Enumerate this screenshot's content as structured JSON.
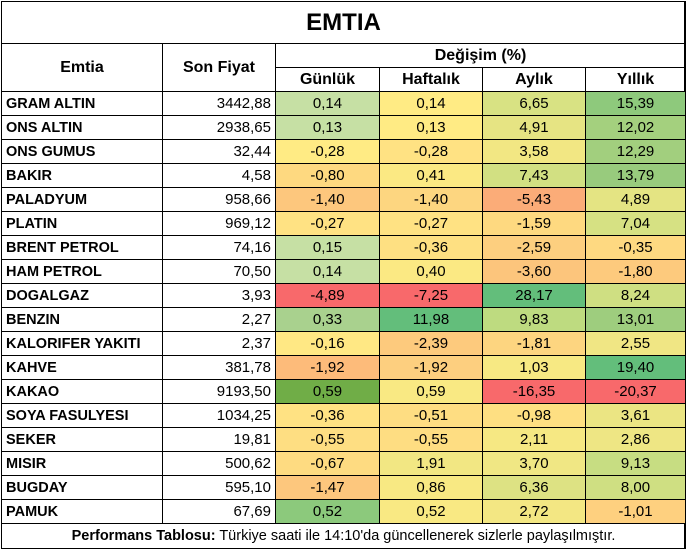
{
  "title": "EMTIA",
  "headers": {
    "name": "Emtia",
    "price": "Son Fiyat",
    "change_group": "Değişim (%)",
    "daily": "Günlük",
    "weekly": "Haftalık",
    "monthly": "Aylık",
    "yearly": "Yıllık"
  },
  "rows": [
    {
      "name": "GRAM ALTIN",
      "price": "3442,88",
      "daily": "0,14",
      "weekly": "0,14",
      "monthly": "6,65",
      "yearly": "15,39",
      "colors": [
        "#c6e0a4",
        "#ffeb84",
        "#d8e283",
        "#8ec97c"
      ]
    },
    {
      "name": "ONS ALTIN",
      "price": "2938,65",
      "daily": "0,13",
      "weekly": "0,13",
      "monthly": "4,91",
      "yearly": "12,02",
      "colors": [
        "#c6e0a4",
        "#ffeb84",
        "#e6e483",
        "#a4d07e"
      ]
    },
    {
      "name": "ONS GUMUS",
      "price": "32,44",
      "daily": "-0,28",
      "weekly": "-0,28",
      "monthly": "3,58",
      "yearly": "12,29",
      "colors": [
        "#ffeb84",
        "#ffe283",
        "#f2e783",
        "#a2cf7e"
      ]
    },
    {
      "name": "BAKIR",
      "price": "4,58",
      "daily": "-0,80",
      "weekly": "0,41",
      "monthly": "7,43",
      "yearly": "13,79",
      "colors": [
        "#fed980",
        "#fbe983",
        "#d2e082",
        "#98cb7d"
      ]
    },
    {
      "name": "PALADYUM",
      "price": "958,66",
      "daily": "-1,40",
      "weekly": "-1,40",
      "monthly": "-5,43",
      "yearly": "4,89",
      "colors": [
        "#fdc77d",
        "#fdd680",
        "#fbac78",
        "#e4e483"
      ]
    },
    {
      "name": "PLATIN",
      "price": "969,12",
      "daily": "-0,27",
      "weekly": "-0,27",
      "monthly": "-1,59",
      "yearly": "7,04",
      "colors": [
        "#ffe283",
        "#ffe283",
        "#fed980",
        "#d6e183"
      ]
    },
    {
      "name": "BRENT PETROL",
      "price": "74,16",
      "daily": "0,15",
      "weekly": "-0,36",
      "monthly": "-2,59",
      "yearly": "-0,35",
      "colors": [
        "#c6e0a4",
        "#fee082",
        "#fdcf7f",
        "#fed981"
      ]
    },
    {
      "name": "HAM PETROL",
      "price": "70,50",
      "daily": "0,14",
      "weekly": "0,40",
      "monthly": "-3,60",
      "yearly": "-1,80",
      "colors": [
        "#c6e0a4",
        "#fbe983",
        "#fcc57c",
        "#fdca7d"
      ]
    },
    {
      "name": "DOGALGAZ",
      "price": "3,93",
      "daily": "-4,89",
      "weekly": "-7,25",
      "monthly": "28,17",
      "yearly": "8,24",
      "colors": [
        "#f8696b",
        "#f8696b",
        "#63be7b",
        "#cfdf82"
      ]
    },
    {
      "name": "BENZIN",
      "price": "2,27",
      "daily": "0,33",
      "weekly": "11,98",
      "monthly": "9,83",
      "yearly": "13,01",
      "colors": [
        "#a9d18e",
        "#63be7b",
        "#bedb80",
        "#9ecd7e"
      ]
    },
    {
      "name": "KALORIFER YAKITI",
      "price": "2,37",
      "daily": "-0,16",
      "weekly": "-2,39",
      "monthly": "-1,81",
      "yearly": "2,55",
      "colors": [
        "#ffe884",
        "#fdca7d",
        "#fdd580",
        "#f0e684"
      ]
    },
    {
      "name": "KAHVE",
      "price": "381,78",
      "daily": "-1,92",
      "weekly": "-1,92",
      "monthly": "1,03",
      "yearly": "19,40",
      "colors": [
        "#fdbb7a",
        "#fdcf7f",
        "#f7e983",
        "#63be7b"
      ]
    },
    {
      "name": "KAKAO",
      "price": "9193,50",
      "daily": "0,59",
      "weekly": "0,59",
      "monthly": "-16,35",
      "yearly": "-20,37",
      "colors": [
        "#70ad47",
        "#f9e983",
        "#f8696b",
        "#f8696b"
      ]
    },
    {
      "name": "SOYA FASULYESI",
      "price": "1034,25",
      "daily": "-0,36",
      "weekly": "-0,51",
      "monthly": "-0,98",
      "yearly": "3,61",
      "colors": [
        "#ffe283",
        "#fedd82",
        "#fedf82",
        "#ebe583"
      ]
    },
    {
      "name": "SEKER",
      "price": "19,81",
      "daily": "-0,55",
      "weekly": "-0,55",
      "monthly": "2,11",
      "yearly": "2,86",
      "colors": [
        "#fede82",
        "#fedd82",
        "#f6e883",
        "#eee684"
      ]
    },
    {
      "name": "MISIR",
      "price": "500,62",
      "daily": "-0,67",
      "weekly": "1,91",
      "monthly": "3,70",
      "yearly": "9,13",
      "colors": [
        "#fedb81",
        "#f2e783",
        "#f0e784",
        "#c7dd82"
      ]
    },
    {
      "name": "BUGDAY",
      "price": "595,10",
      "daily": "-1,47",
      "weekly": "0,86",
      "monthly": "6,36",
      "yearly": "8,00",
      "colors": [
        "#fdc77d",
        "#f8e983",
        "#dde283",
        "#cfdf82"
      ]
    },
    {
      "name": "PAMUK",
      "price": "67,69",
      "daily": "0,52",
      "weekly": "0,52",
      "monthly": "2,72",
      "yearly": "-1,01",
      "colors": [
        "#8cc97c",
        "#f9e983",
        "#f3e783",
        "#fed07f"
      ]
    }
  ],
  "footer": {
    "label": "Performans Tablosu:",
    "text": " Türkiye saati ile 14:10'da güncellenerek sizlerle paylaşılmıştır."
  }
}
